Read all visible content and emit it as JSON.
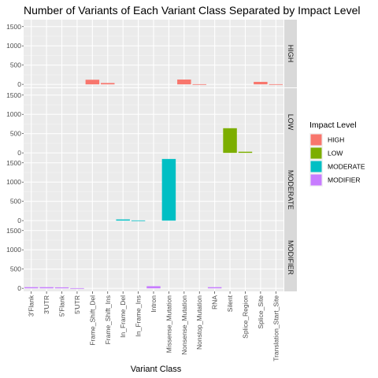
{
  "chart_data": {
    "type": "bar",
    "layout": "faceted-rows",
    "title": "Number of Variants of Each Variant Class Separated by Impact Level",
    "xlabel": "Variant Class",
    "ylabel": "",
    "ylim": [
      0,
      1600
    ],
    "yticks": [
      0,
      500,
      1000,
      1500
    ],
    "grid": true,
    "legend": {
      "title": "Impact Level",
      "position": "right"
    },
    "categories": [
      "3'Flank",
      "3'UTR",
      "5'Flank",
      "5'UTR",
      "Frame_Shift_Del",
      "Frame_Shift_Ins",
      "In_Frame_Del",
      "In_Frame_Ins",
      "Intron",
      "Missense_Mutation",
      "Nonsense_Mutation",
      "Nonstop_Mutation",
      "RNA",
      "Silent",
      "Splice_Region",
      "Splice_Site",
      "Translation_Start_Site"
    ],
    "series": [
      {
        "name": "HIGH",
        "color": "#F8766D",
        "values": [
          0,
          0,
          0,
          0,
          120,
          35,
          0,
          0,
          0,
          0,
          125,
          5,
          0,
          0,
          0,
          65,
          5
        ]
      },
      {
        "name": "LOW",
        "color": "#7CAE00",
        "values": [
          0,
          0,
          0,
          0,
          0,
          0,
          0,
          0,
          0,
          0,
          0,
          0,
          0,
          640,
          30,
          0,
          0
        ]
      },
      {
        "name": "MODERATE",
        "color": "#00BFC4",
        "values": [
          0,
          0,
          0,
          0,
          0,
          0,
          30,
          5,
          0,
          1600,
          0,
          0,
          0,
          0,
          0,
          0,
          0
        ]
      },
      {
        "name": "MODIFIER",
        "color": "#C77CFF",
        "values": [
          30,
          30,
          25,
          5,
          0,
          0,
          0,
          0,
          55,
          0,
          0,
          0,
          30,
          0,
          0,
          0,
          0
        ]
      }
    ]
  }
}
